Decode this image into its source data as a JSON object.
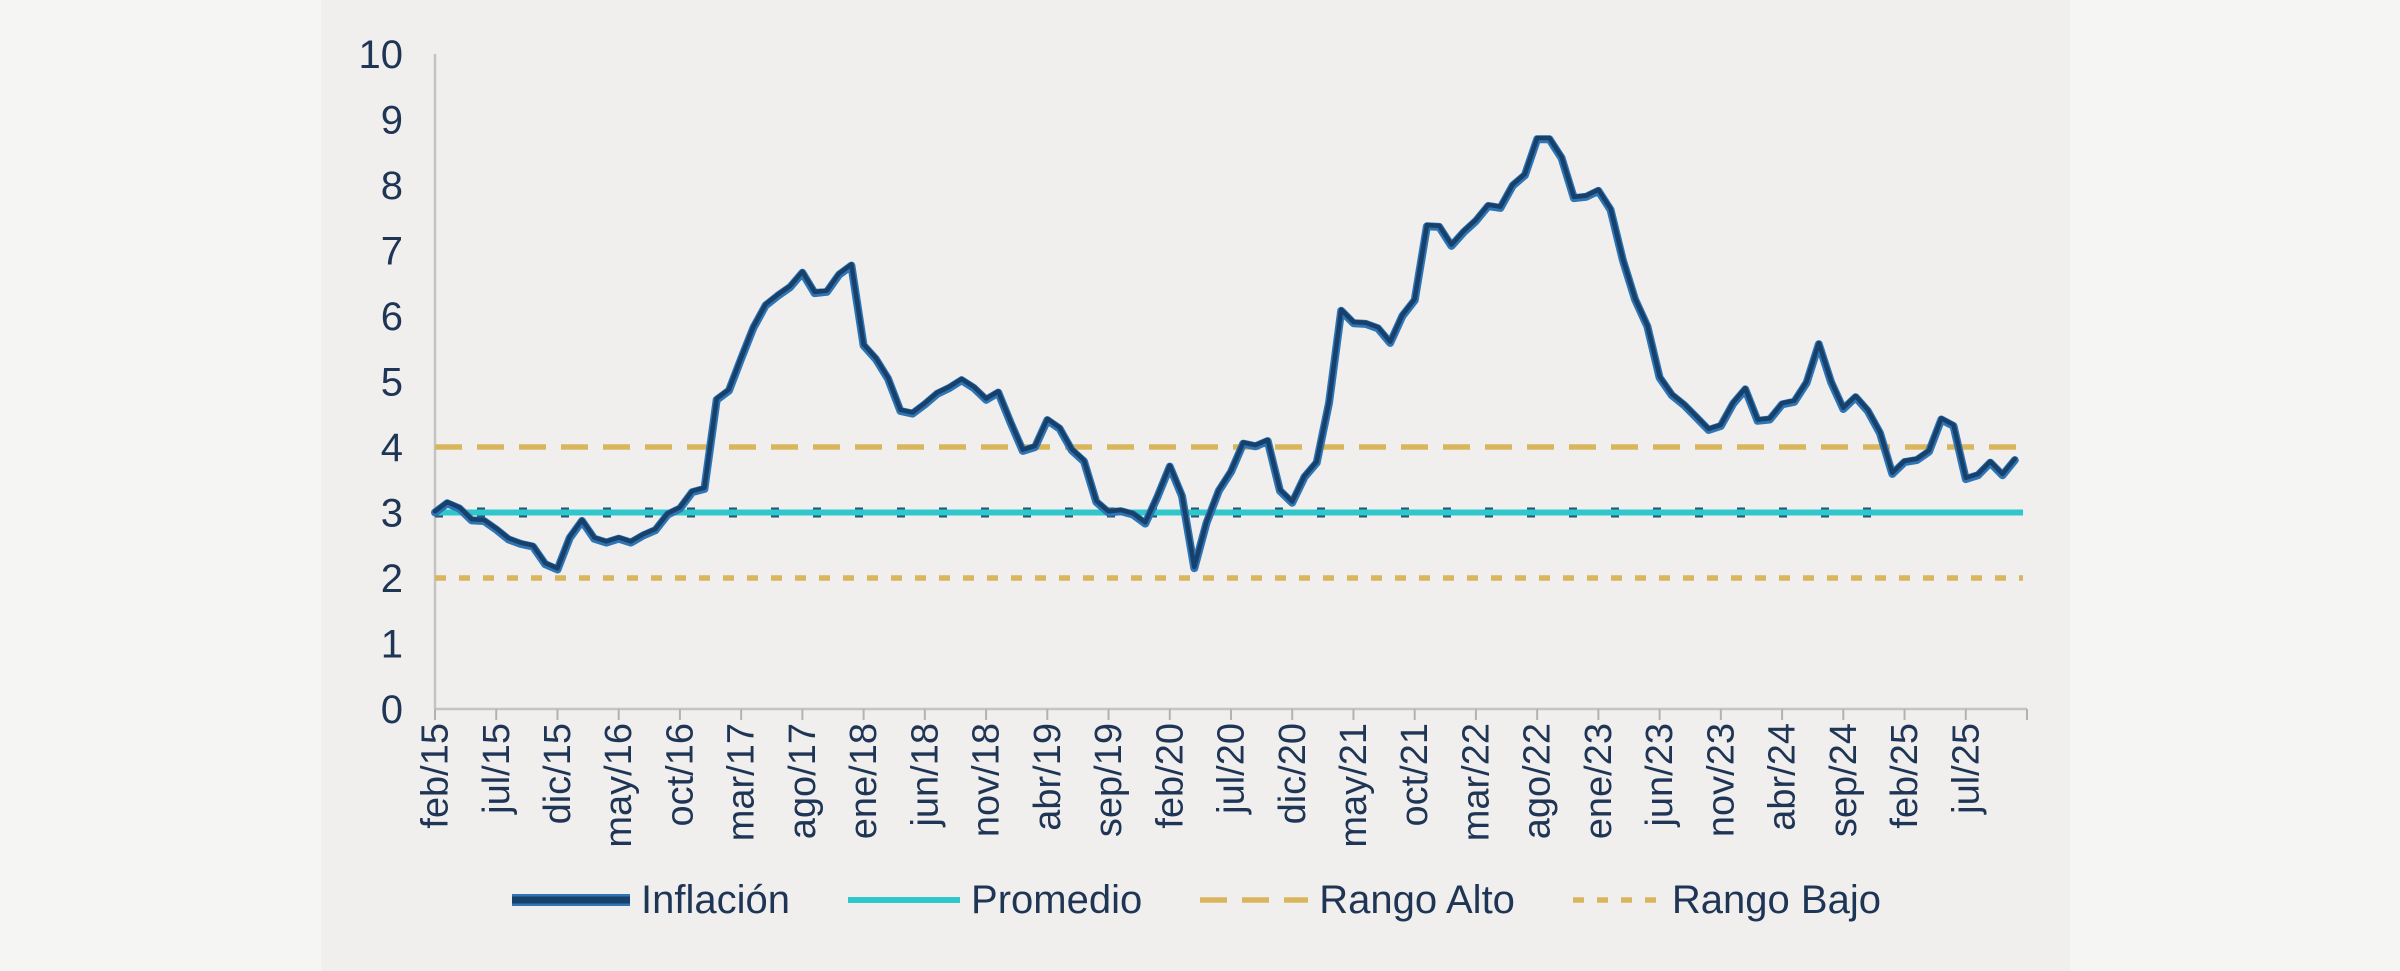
{
  "window": {
    "background_outer": "#f5f5f4",
    "background_panel": "#f0efed"
  },
  "chart_data": {
    "type": "line",
    "title": "",
    "xlabel": "",
    "ylabel": "",
    "ylim": [
      0,
      10
    ],
    "y_ticks": [
      0,
      1,
      2,
      3,
      4,
      5,
      6,
      7,
      8,
      9,
      10
    ],
    "grid": "off",
    "legend_position": "bottom-center",
    "label_color": "#1f3556",
    "axis_color": "#c4c4c4",
    "tick_color": "#b2b2b2",
    "x_tick_interval": 5,
    "x_tick_labels": [
      "feb/15",
      "jul/15",
      "dic/15",
      "may/16",
      "oct/16",
      "mar/17",
      "ago/17",
      "ene/18",
      "jun/18",
      "nov/18",
      "abr/19",
      "sep/19",
      "feb/20",
      "jul/20",
      "dic/20",
      "may/21",
      "oct/21",
      "mar/22",
      "ago/22",
      "ene/23",
      "jun/23",
      "nov/23",
      "abr/24",
      "sep/24",
      "feb/25",
      "jul/25"
    ],
    "categories": [
      "feb/15",
      "mar/15",
      "abr/15",
      "may/15",
      "jun/15",
      "jul/15",
      "ago/15",
      "sep/15",
      "oct/15",
      "nov/15",
      "dic/15",
      "ene/16",
      "feb/16",
      "mar/16",
      "abr/16",
      "may/16",
      "jun/16",
      "jul/16",
      "ago/16",
      "sep/16",
      "oct/16",
      "nov/16",
      "dic/16",
      "ene/17",
      "feb/17",
      "mar/17",
      "abr/17",
      "may/17",
      "jun/17",
      "jul/17",
      "ago/17",
      "sep/17",
      "oct/17",
      "nov/17",
      "dic/17",
      "ene/18",
      "feb/18",
      "mar/18",
      "abr/18",
      "may/18",
      "jun/18",
      "jul/18",
      "ago/18",
      "sep/18",
      "oct/18",
      "nov/18",
      "dic/18",
      "ene/19",
      "feb/19",
      "mar/19",
      "abr/19",
      "may/19",
      "jun/19",
      "jul/19",
      "ago/19",
      "sep/19",
      "oct/19",
      "nov/19",
      "dic/19",
      "ene/20",
      "feb/20",
      "mar/20",
      "abr/20",
      "may/20",
      "jun/20",
      "jul/20",
      "ago/20",
      "sep/20",
      "oct/20",
      "nov/20",
      "dic/20",
      "ene/21",
      "feb/21",
      "mar/21",
      "abr/21",
      "may/21",
      "jun/21",
      "jul/21",
      "ago/21",
      "sep/21",
      "oct/21",
      "nov/21",
      "dic/21",
      "ene/22",
      "feb/22",
      "mar/22",
      "abr/22",
      "may/22",
      "jun/22",
      "jul/22",
      "ago/22",
      "sep/22",
      "oct/22",
      "nov/22",
      "dic/22",
      "ene/23",
      "feb/23",
      "mar/23",
      "abr/23",
      "may/23",
      "jun/23",
      "jul/23",
      "ago/23",
      "sep/23",
      "oct/23",
      "nov/23",
      "dic/23",
      "ene/24",
      "feb/24",
      "mar/24",
      "abr/24",
      "may/24",
      "jun/24",
      "jul/24",
      "ago/24",
      "sep/24",
      "oct/24",
      "nov/24",
      "dic/24",
      "ene/25",
      "feb/25",
      "mar/25",
      "abr/25",
      "may/25",
      "jun/25",
      "jul/25",
      "ago/25",
      "sep/25",
      "oct/25",
      "nov/25"
    ],
    "series": [
      {
        "name": "Inflación",
        "color": "#17406b",
        "color_light": "#2e75b6",
        "values": [
          3.0,
          3.14,
          3.06,
          2.88,
          2.87,
          2.74,
          2.59,
          2.52,
          2.48,
          2.21,
          2.13,
          2.61,
          2.87,
          2.6,
          2.54,
          2.6,
          2.54,
          2.65,
          2.73,
          2.97,
          3.06,
          3.31,
          3.36,
          4.72,
          4.86,
          5.35,
          5.82,
          6.16,
          6.31,
          6.44,
          6.66,
          6.35,
          6.37,
          6.63,
          6.77,
          5.55,
          5.34,
          5.04,
          4.55,
          4.51,
          4.65,
          4.81,
          4.9,
          5.02,
          4.9,
          4.72,
          4.83,
          4.37,
          3.94,
          4.0,
          4.41,
          4.28,
          3.95,
          3.78,
          3.16,
          3.0,
          3.02,
          2.97,
          2.83,
          3.24,
          3.7,
          3.25,
          2.15,
          2.84,
          3.33,
          3.62,
          4.05,
          4.01,
          4.09,
          3.33,
          3.15,
          3.54,
          3.76,
          4.67,
          6.08,
          5.89,
          5.88,
          5.81,
          5.59,
          6.0,
          6.24,
          7.37,
          7.36,
          7.07,
          7.28,
          7.45,
          7.68,
          7.65,
          7.99,
          8.15,
          8.7,
          8.7,
          8.41,
          7.8,
          7.82,
          7.91,
          7.62,
          6.85,
          6.25,
          5.84,
          5.06,
          4.79,
          4.64,
          4.45,
          4.26,
          4.32,
          4.66,
          4.88,
          4.4,
          4.42,
          4.65,
          4.69,
          4.98,
          5.57,
          4.99,
          4.58,
          4.76,
          4.55,
          4.21,
          3.59,
          3.77,
          3.8,
          3.93,
          4.42,
          4.32,
          3.51,
          3.57,
          3.76,
          3.57,
          3.8
        ]
      }
    ],
    "reference_lines": [
      {
        "name": "Rango Alto",
        "value": 4.0,
        "color": "#d9b65e",
        "width": 5.5,
        "dash": "27 15",
        "end_month": null
      },
      {
        "name": "Rango Bajo",
        "value": 2.0,
        "color": "#d9b65e",
        "width": 5.5,
        "dash": "11 13",
        "end_month": null
      },
      {
        "name": "",
        "value": 3.0,
        "color": "#1d5a74",
        "width": 10,
        "dash": "8 34",
        "end_month": 119
      },
      {
        "name": "Promedio",
        "value": 3.0,
        "color": "#2fc7cb",
        "width": 6,
        "dash": null,
        "end_month": null
      }
    ],
    "legend": [
      {
        "label": "Inflación",
        "type": "dual-solid",
        "color": "#17406b",
        "color_light": "#2e75b6",
        "width": 7,
        "width_light": 12,
        "dash": null,
        "swatch_w": 122
      },
      {
        "label": "Promedio",
        "type": "solid",
        "color": "#2fc7cb",
        "width": 6,
        "dash": null,
        "swatch_w": 116
      },
      {
        "label": "Rango Alto",
        "type": "dash",
        "color": "#d9b65e",
        "width": 5.5,
        "dash": "27 15",
        "swatch_w": 112
      },
      {
        "label": "Rango Bajo",
        "type": "dash",
        "color": "#d9b65e",
        "width": 5.5,
        "dash": "11 13",
        "swatch_w": 92
      }
    ]
  }
}
